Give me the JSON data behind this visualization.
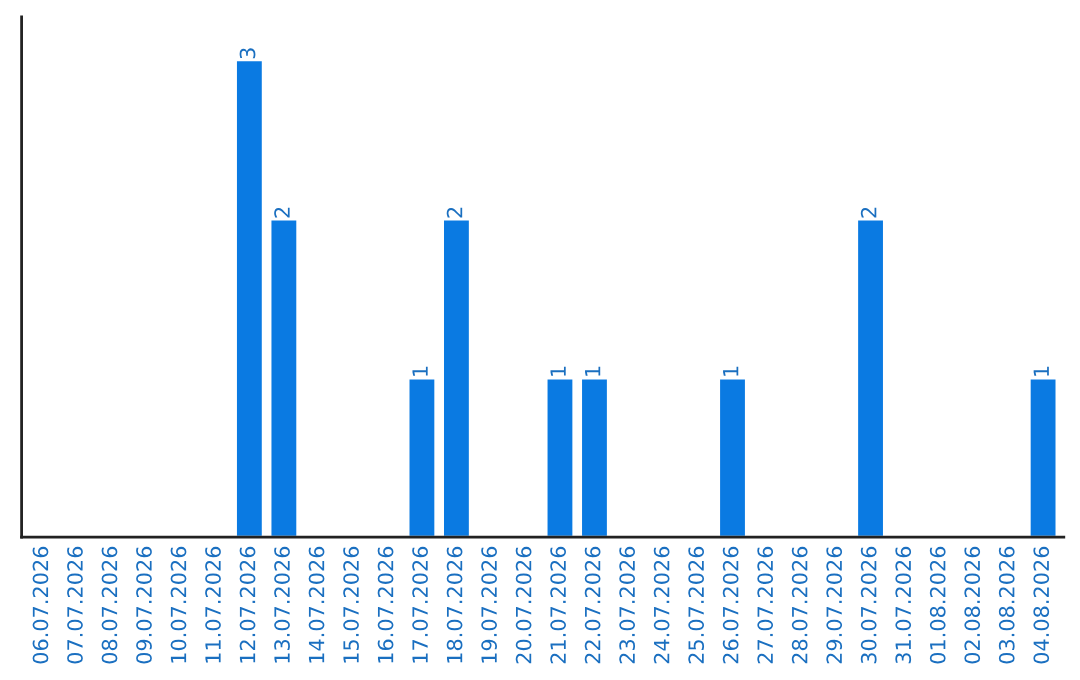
{
  "chart_data": {
    "type": "bar",
    "categories": [
      "06.07.2026",
      "07.07.2026",
      "08.07.2026",
      "09.07.2026",
      "10.07.2026",
      "11.07.2026",
      "12.07.2026",
      "13.07.2026",
      "14.07.2026",
      "15.07.2026",
      "16.07.2026",
      "17.07.2026",
      "18.07.2026",
      "19.07.2026",
      "20.07.2026",
      "21.07.2026",
      "22.07.2026",
      "23.07.2026",
      "24.07.2026",
      "25.07.2026",
      "26.07.2026",
      "27.07.2026",
      "28.07.2026",
      "29.07.2026",
      "30.07.2026",
      "31.07.2026",
      "01.08.2026",
      "02.08.2026",
      "03.08.2026",
      "04.08.2026"
    ],
    "values": [
      null,
      null,
      null,
      null,
      null,
      null,
      3,
      2,
      null,
      null,
      null,
      1,
      2,
      null,
      null,
      1,
      1,
      null,
      null,
      null,
      1,
      null,
      null,
      null,
      2,
      null,
      null,
      null,
      null,
      1
    ],
    "value_labels": [
      null,
      null,
      null,
      null,
      null,
      null,
      "3",
      "2",
      null,
      null,
      null,
      "1",
      "2",
      null,
      null,
      "1",
      "1",
      null,
      null,
      null,
      "1",
      null,
      null,
      null,
      "2",
      null,
      null,
      null,
      null,
      "1"
    ],
    "color": "#0a7ae2",
    "tick_labels": "x",
    "grid": false,
    "legend": false
  }
}
